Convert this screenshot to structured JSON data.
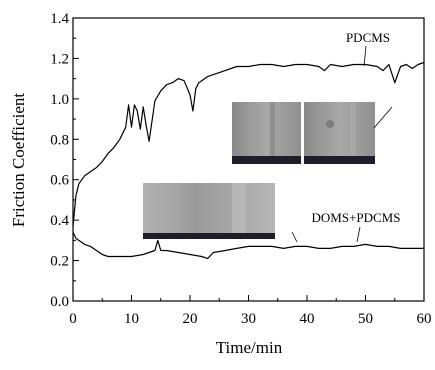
{
  "chart_data": {
    "type": "line",
    "title": "",
    "xlabel": "Time/min",
    "ylabel": "Friction Coefficient",
    "xlim": [
      0,
      60
    ],
    "ylim": [
      0.0,
      1.4
    ],
    "x_ticks": [
      "0",
      "10",
      "20",
      "30",
      "40",
      "50",
      "60"
    ],
    "y_ticks": [
      "0.0",
      "0.2",
      "0.4",
      "0.6",
      "0.8",
      "1.0",
      "1.2",
      "1.4"
    ],
    "grid": false,
    "series": [
      {
        "name": "PDCMS",
        "color": "#000000",
        "x": [
          0,
          0.5,
          1,
          2,
          3,
          4,
          5,
          6,
          7,
          8,
          9,
          9.5,
          10,
          10.5,
          11,
          11.5,
          12,
          12.5,
          13,
          14,
          15,
          16,
          17,
          18,
          19,
          20,
          20.5,
          21,
          21.5,
          22,
          23,
          24,
          25,
          26,
          27,
          28,
          29,
          30,
          32,
          34,
          36,
          38,
          40,
          42,
          43,
          44,
          46,
          48,
          50,
          52,
          53,
          54,
          55,
          56,
          57,
          58,
          59,
          60
        ],
        "y": [
          0.37,
          0.52,
          0.58,
          0.62,
          0.64,
          0.66,
          0.69,
          0.73,
          0.76,
          0.8,
          0.86,
          0.97,
          0.86,
          0.97,
          0.94,
          0.85,
          0.96,
          0.87,
          0.79,
          0.99,
          1.04,
          1.07,
          1.08,
          1.1,
          1.09,
          1.02,
          0.94,
          1.05,
          1.08,
          1.09,
          1.11,
          1.12,
          1.13,
          1.14,
          1.15,
          1.16,
          1.16,
          1.16,
          1.17,
          1.17,
          1.16,
          1.17,
          1.17,
          1.16,
          1.14,
          1.17,
          1.16,
          1.17,
          1.17,
          1.16,
          1.14,
          1.17,
          1.08,
          1.16,
          1.17,
          1.15,
          1.17,
          1.18
        ]
      },
      {
        "name": "DOMS+PDCMS",
        "color": "#000000",
        "x": [
          0,
          0.5,
          1,
          2,
          3,
          4,
          5,
          6,
          8,
          10,
          12,
          13,
          14,
          14.5,
          15,
          16,
          18,
          20,
          22,
          23,
          24,
          26,
          28,
          30,
          32,
          34,
          36,
          38,
          40,
          42,
          44,
          46,
          48,
          50,
          52,
          54,
          56,
          58,
          60
        ],
        "y": [
          0.34,
          0.31,
          0.3,
          0.28,
          0.27,
          0.25,
          0.23,
          0.22,
          0.22,
          0.22,
          0.23,
          0.24,
          0.25,
          0.3,
          0.25,
          0.25,
          0.24,
          0.23,
          0.22,
          0.21,
          0.24,
          0.25,
          0.26,
          0.27,
          0.27,
          0.27,
          0.26,
          0.27,
          0.27,
          0.26,
          0.26,
          0.27,
          0.27,
          0.28,
          0.27,
          0.27,
          0.26,
          0.26,
          0.26
        ]
      }
    ]
  }
}
